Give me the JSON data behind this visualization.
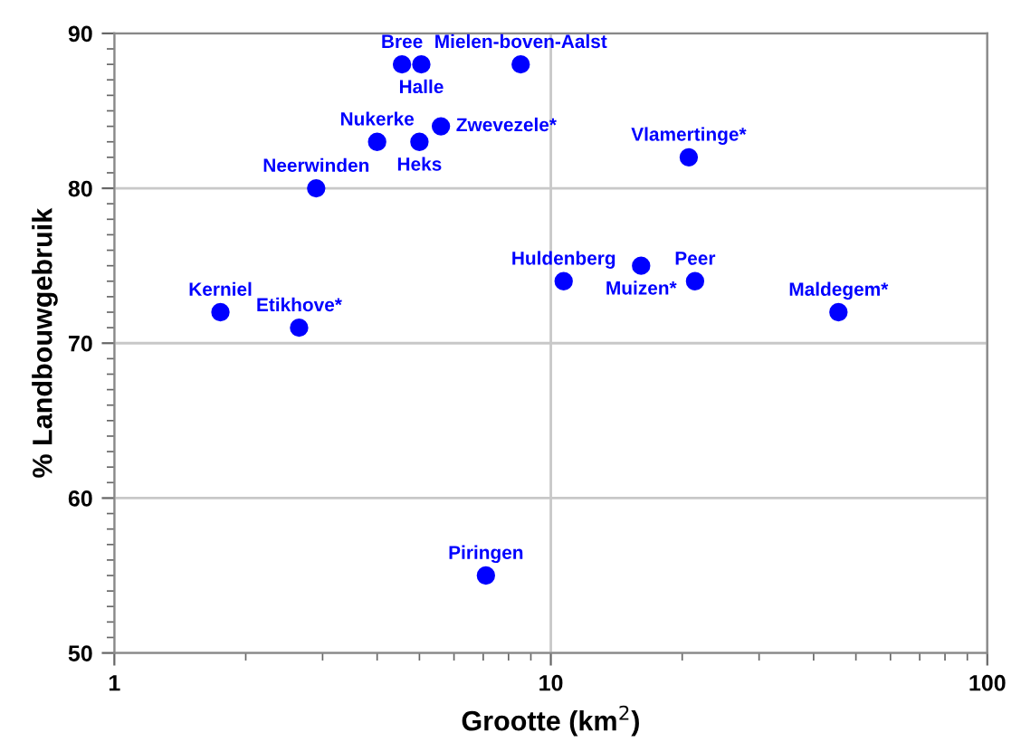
{
  "chart_data": {
    "type": "scatter",
    "xlabel": "Grootte (km$^{2}$)",
    "ylabel": "% Landbouwgebruik",
    "log": "x",
    "xlim": [
      1,
      100
    ],
    "xticks": [
      1,
      10,
      100
    ],
    "ylim": [
      50,
      90
    ],
    "yticks": [
      50,
      60,
      70,
      80,
      90
    ],
    "grid": true,
    "marker": "circle",
    "series": [
      {
        "color": "#0000ff",
        "x": [
          4.56,
          5.05,
          8.53,
          4.0,
          5.0,
          5.6,
          20.7,
          2.9,
          10.7,
          16.1,
          21.4,
          45.6,
          1.75,
          2.65,
          7.1
        ],
        "values": [
          88,
          88,
          88,
          83,
          83,
          84,
          82,
          80,
          74,
          75,
          74,
          72,
          72,
          71,
          55
        ]
      }
    ],
    "annotations": [
      {
        "text": "Bree",
        "x": 4.56,
        "y": 88
      },
      {
        "text": "Halle",
        "x": 5.05,
        "y": 88
      },
      {
        "text": "Mielen-boven-Aalst",
        "x": 8.53,
        "y": 88
      },
      {
        "text": "Nukerke",
        "x": 4.0,
        "y": 83
      },
      {
        "text": "Heks",
        "x": 5.0,
        "y": 83
      },
      {
        "text": "Zwevezele*",
        "x": 5.6,
        "y": 84
      },
      {
        "text": "Vlamertinge*",
        "x": 20.7,
        "y": 82
      },
      {
        "text": "Neerwinden",
        "x": 2.9,
        "y": 80
      },
      {
        "text": "Huldenberg",
        "x": 10.7,
        "y": 74
      },
      {
        "text": "Muizen*",
        "x": 16.1,
        "y": 75
      },
      {
        "text": "Peer",
        "x": 21.4,
        "y": 74
      },
      {
        "text": "Maldegem*",
        "x": 45.6,
        "y": 72
      },
      {
        "text": "Kerniel",
        "x": 1.75,
        "y": 72
      },
      {
        "text": "Etikhove*",
        "x": 2.65,
        "y": 71
      },
      {
        "text": "Piringen",
        "x": 7.1,
        "y": 55
      }
    ]
  }
}
